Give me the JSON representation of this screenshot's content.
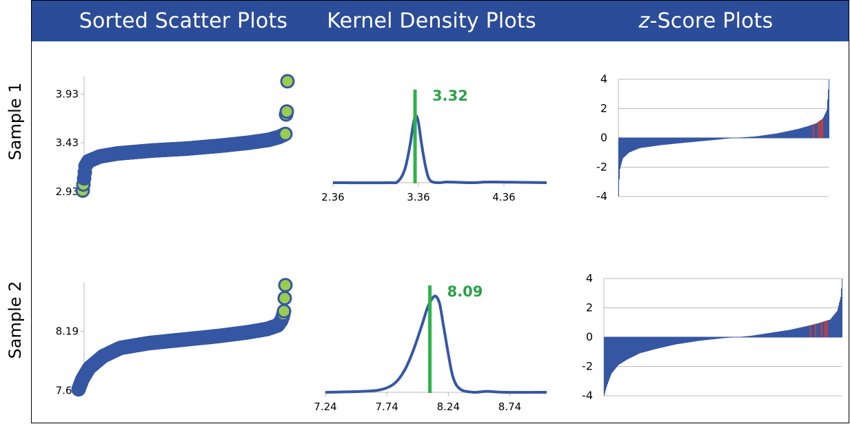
{
  "columns": [
    {
      "title": "Sorted Scatter Plots"
    },
    {
      "title": "Kernel Density Plots"
    },
    {
      "title_prefix": "z",
      "title_suffix": "-Score Plots"
    }
  ],
  "rows": [
    {
      "label": "Sample 1"
    },
    {
      "label": "Sample 2"
    }
  ],
  "colors": {
    "header": "#2b4c98",
    "series": "#3557a3",
    "marker_fill": "#9acd4d",
    "value_line": "#2fb24a",
    "value_text": "#2aa147",
    "highlight": "#d83a2e"
  },
  "chart_data": [
    {
      "type": "scatter",
      "panel": "sorted-1",
      "yticks": [
        "2.93",
        "3.43",
        "3.93"
      ],
      "ylim": [
        2.83,
        4.13
      ],
      "points": [
        [
          0,
          2.94
        ],
        [
          4,
          3.19
        ],
        [
          8,
          3.24
        ],
        [
          25,
          3.29
        ],
        [
          50,
          3.32
        ],
        [
          100,
          3.35
        ],
        [
          150,
          3.37
        ],
        [
          200,
          3.4
        ],
        [
          240,
          3.43
        ],
        [
          270,
          3.46
        ],
        [
          285,
          3.49
        ],
        [
          294,
          3.52
        ],
        [
          295,
          3.72
        ],
        [
          296,
          3.75
        ],
        [
          297,
          4.06
        ]
      ]
    },
    {
      "type": "line",
      "panel": "density-1",
      "xticks": [
        "2.36",
        "3.36",
        "4.36"
      ],
      "xlim": [
        2.36,
        4.86
      ],
      "curve": [
        [
          2.36,
          0.0
        ],
        [
          3.0,
          0.0
        ],
        [
          3.12,
          0.02
        ],
        [
          3.2,
          0.2
        ],
        [
          3.26,
          0.55
        ],
        [
          3.3,
          0.88
        ],
        [
          3.33,
          1.0
        ],
        [
          3.36,
          0.9
        ],
        [
          3.4,
          0.55
        ],
        [
          3.45,
          0.2
        ],
        [
          3.5,
          0.03
        ],
        [
          3.6,
          0.0
        ],
        [
          3.7,
          0.01
        ],
        [
          4.0,
          0.0
        ],
        [
          4.2,
          0.01
        ],
        [
          4.86,
          0.0
        ]
      ],
      "value": 3.32,
      "value_label": "3.32"
    },
    {
      "type": "bar",
      "panel": "zscore-1",
      "yticks": [
        "-4",
        "-2",
        "0",
        "2",
        "4"
      ],
      "ylim": [
        -4,
        4
      ],
      "profile": [
        [
          0.0,
          -4.0
        ],
        [
          0.005,
          -2.2
        ],
        [
          0.02,
          -1.4
        ],
        [
          0.05,
          -1.0
        ],
        [
          0.1,
          -0.7
        ],
        [
          0.2,
          -0.5
        ],
        [
          0.3,
          -0.35
        ],
        [
          0.45,
          -0.15
        ],
        [
          0.55,
          0.0
        ],
        [
          0.65,
          0.1
        ],
        [
          0.75,
          0.3
        ],
        [
          0.85,
          0.6
        ],
        [
          0.9,
          0.8
        ],
        [
          0.94,
          1.0
        ],
        [
          0.97,
          1.3
        ],
        [
          0.99,
          1.9
        ],
        [
          1.0,
          4.0
        ]
      ],
      "highlights": [
        0.927,
        0.952,
        0.962,
        0.97
      ]
    },
    {
      "type": "scatter",
      "panel": "sorted-2",
      "yticks": [
        "7.69",
        "8.19"
      ],
      "ylim": [
        7.64,
        8.63
      ],
      "points": [
        [
          0,
          7.7
        ],
        [
          5,
          7.78
        ],
        [
          15,
          7.88
        ],
        [
          35,
          7.98
        ],
        [
          60,
          8.05
        ],
        [
          100,
          8.09
        ],
        [
          150,
          8.12
        ],
        [
          200,
          8.15
        ],
        [
          240,
          8.18
        ],
        [
          270,
          8.21
        ],
        [
          285,
          8.24
        ],
        [
          290,
          8.28
        ],
        [
          292,
          8.31
        ],
        [
          294,
          8.36
        ],
        [
          296,
          8.58
        ]
      ]
    },
    {
      "type": "line",
      "panel": "density-2",
      "xticks": [
        "7.24",
        "7.74",
        "8.24",
        "8.74"
      ],
      "xlim": [
        7.24,
        9.04
      ],
      "curve": [
        [
          7.24,
          0.0
        ],
        [
          7.55,
          0.01
        ],
        [
          7.7,
          0.03
        ],
        [
          7.8,
          0.09
        ],
        [
          7.88,
          0.22
        ],
        [
          7.95,
          0.42
        ],
        [
          8.02,
          0.68
        ],
        [
          8.07,
          0.88
        ],
        [
          8.11,
          0.98
        ],
        [
          8.14,
          1.0
        ],
        [
          8.17,
          0.92
        ],
        [
          8.2,
          0.7
        ],
        [
          8.24,
          0.4
        ],
        [
          8.28,
          0.15
        ],
        [
          8.34,
          0.03
        ],
        [
          8.45,
          0.0
        ],
        [
          8.55,
          0.01
        ],
        [
          8.7,
          0.0
        ],
        [
          9.04,
          0.0
        ]
      ],
      "value": 8.09,
      "value_label": "8.09"
    },
    {
      "type": "bar",
      "panel": "zscore-2",
      "yticks": [
        "-4",
        "-2",
        "0",
        "2",
        "4"
      ],
      "ylim": [
        -4,
        4
      ],
      "profile": [
        [
          0.0,
          -4.0
        ],
        [
          0.01,
          -3.4
        ],
        [
          0.03,
          -2.5
        ],
        [
          0.06,
          -1.9
        ],
        [
          0.1,
          -1.5
        ],
        [
          0.15,
          -1.1
        ],
        [
          0.22,
          -0.8
        ],
        [
          0.3,
          -0.5
        ],
        [
          0.4,
          -0.25
        ],
        [
          0.5,
          -0.07
        ],
        [
          0.56,
          0.0
        ],
        [
          0.62,
          0.1
        ],
        [
          0.7,
          0.3
        ],
        [
          0.78,
          0.5
        ],
        [
          0.85,
          0.75
        ],
        [
          0.9,
          0.95
        ],
        [
          0.95,
          1.2
        ],
        [
          0.98,
          1.8
        ],
        [
          0.995,
          2.8
        ],
        [
          1.0,
          4.0
        ]
      ],
      "highlights": [
        0.868,
        0.89,
        0.915,
        0.93,
        0.938
      ]
    }
  ]
}
